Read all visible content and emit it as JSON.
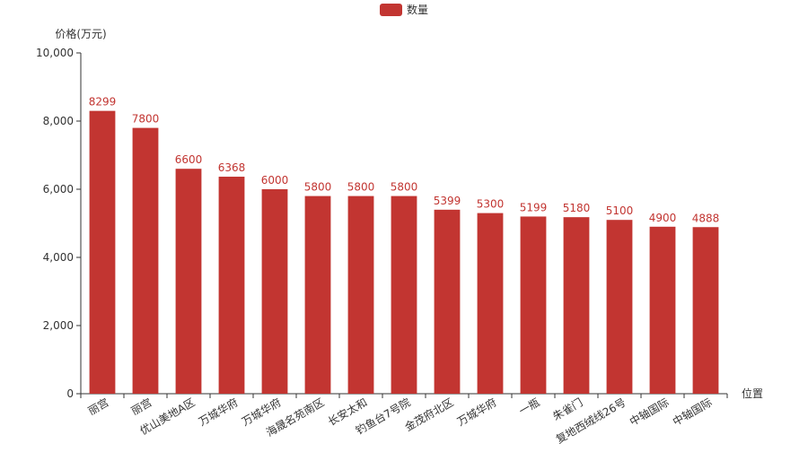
{
  "chart_data": {
    "type": "bar",
    "legend": {
      "label": "数量",
      "position": "top-center"
    },
    "ylabel": "价格(万元)",
    "xlabel": "位置",
    "ylim": [
      0,
      10000
    ],
    "yticks": [
      0,
      2000,
      4000,
      6000,
      8000,
      10000
    ],
    "ytick_labels": [
      "0",
      "2,000",
      "4,000",
      "6,000",
      "8,000",
      "10,000"
    ],
    "categories": [
      "丽宫",
      "丽宫",
      "优山美地A区",
      "万城华府",
      "万城华府",
      "海晟名苑南区",
      "长安太和",
      "钓鱼台7号院",
      "金茂府北区",
      "万城华府",
      "一瓶",
      "朱雀门",
      "复地西绒线26号",
      "中轴国际",
      "中轴国际"
    ],
    "series": [
      {
        "name": "数量",
        "values": [
          8299,
          7800,
          6600,
          6368,
          6000,
          5800,
          5800,
          5800,
          5399,
          5300,
          5199,
          5180,
          5100,
          4900,
          4888
        ]
      }
    ],
    "colors": {
      "bar": "#c23531",
      "axis": "#333333",
      "label": "#c23531"
    },
    "grid": false
  }
}
